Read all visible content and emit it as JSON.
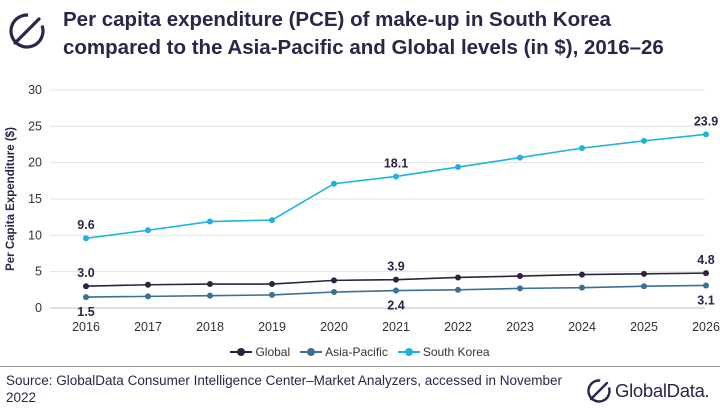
{
  "header": {
    "title": "Per capita expenditure (PCE) of make-up in South Korea compared to the Asia-Pacific and Global levels (in $), 2016–26"
  },
  "footer": {
    "source": "Source: GlobalData Consumer Intelligence Center–Market Analyzers, accessed in November 2022",
    "brand": "GlobalData."
  },
  "colors": {
    "global": "#2d2340",
    "asia_pacific": "#3b6f96",
    "south_korea": "#1fb2de",
    "text": "#2e2448"
  },
  "chart_data": {
    "type": "line",
    "title": "Per capita expenditure (PCE) of make-up in South Korea compared to the Asia-Pacific and Global levels (in $), 2016–26",
    "xlabel": "",
    "ylabel": "Per Capita Expenditure ($)",
    "ylim": [
      0,
      30
    ],
    "yticks": [
      0,
      5,
      10,
      15,
      20,
      25,
      30
    ],
    "grid": true,
    "legend": "bottom-center",
    "x": [
      "2016",
      "2017",
      "2018",
      "2019",
      "2020",
      "2021",
      "2022",
      "2023",
      "2024",
      "2025",
      "2026"
    ],
    "series": [
      {
        "name": "Global",
        "color": "#2d2340",
        "values": [
          3.0,
          3.2,
          3.3,
          3.3,
          3.8,
          3.9,
          4.2,
          4.4,
          4.6,
          4.7,
          4.8
        ]
      },
      {
        "name": "Asia-Pacific",
        "color": "#3b6f96",
        "values": [
          1.5,
          1.6,
          1.7,
          1.8,
          2.2,
          2.4,
          2.5,
          2.7,
          2.8,
          3.0,
          3.1
        ]
      },
      {
        "name": "South Korea",
        "color": "#1fb2de",
        "values": [
          9.6,
          10.7,
          11.9,
          12.1,
          17.1,
          18.1,
          19.4,
          20.7,
          22.0,
          23.0,
          23.9
        ]
      }
    ],
    "data_labels": [
      {
        "series": "South Korea",
        "x": "2016",
        "text": "9.6",
        "pos": "above"
      },
      {
        "series": "South Korea",
        "x": "2021",
        "text": "18.1",
        "pos": "above"
      },
      {
        "series": "South Korea",
        "x": "2026",
        "text": "23.9",
        "pos": "above"
      },
      {
        "series": "Global",
        "x": "2016",
        "text": "3.0",
        "pos": "above"
      },
      {
        "series": "Global",
        "x": "2021",
        "text": "3.9",
        "pos": "above"
      },
      {
        "series": "Global",
        "x": "2026",
        "text": "4.8",
        "pos": "above"
      },
      {
        "series": "Asia-Pacific",
        "x": "2016",
        "text": "1.5",
        "pos": "below"
      },
      {
        "series": "Asia-Pacific",
        "x": "2021",
        "text": "2.4",
        "pos": "below"
      },
      {
        "series": "Asia-Pacific",
        "x": "2026",
        "text": "3.1",
        "pos": "below"
      }
    ]
  }
}
